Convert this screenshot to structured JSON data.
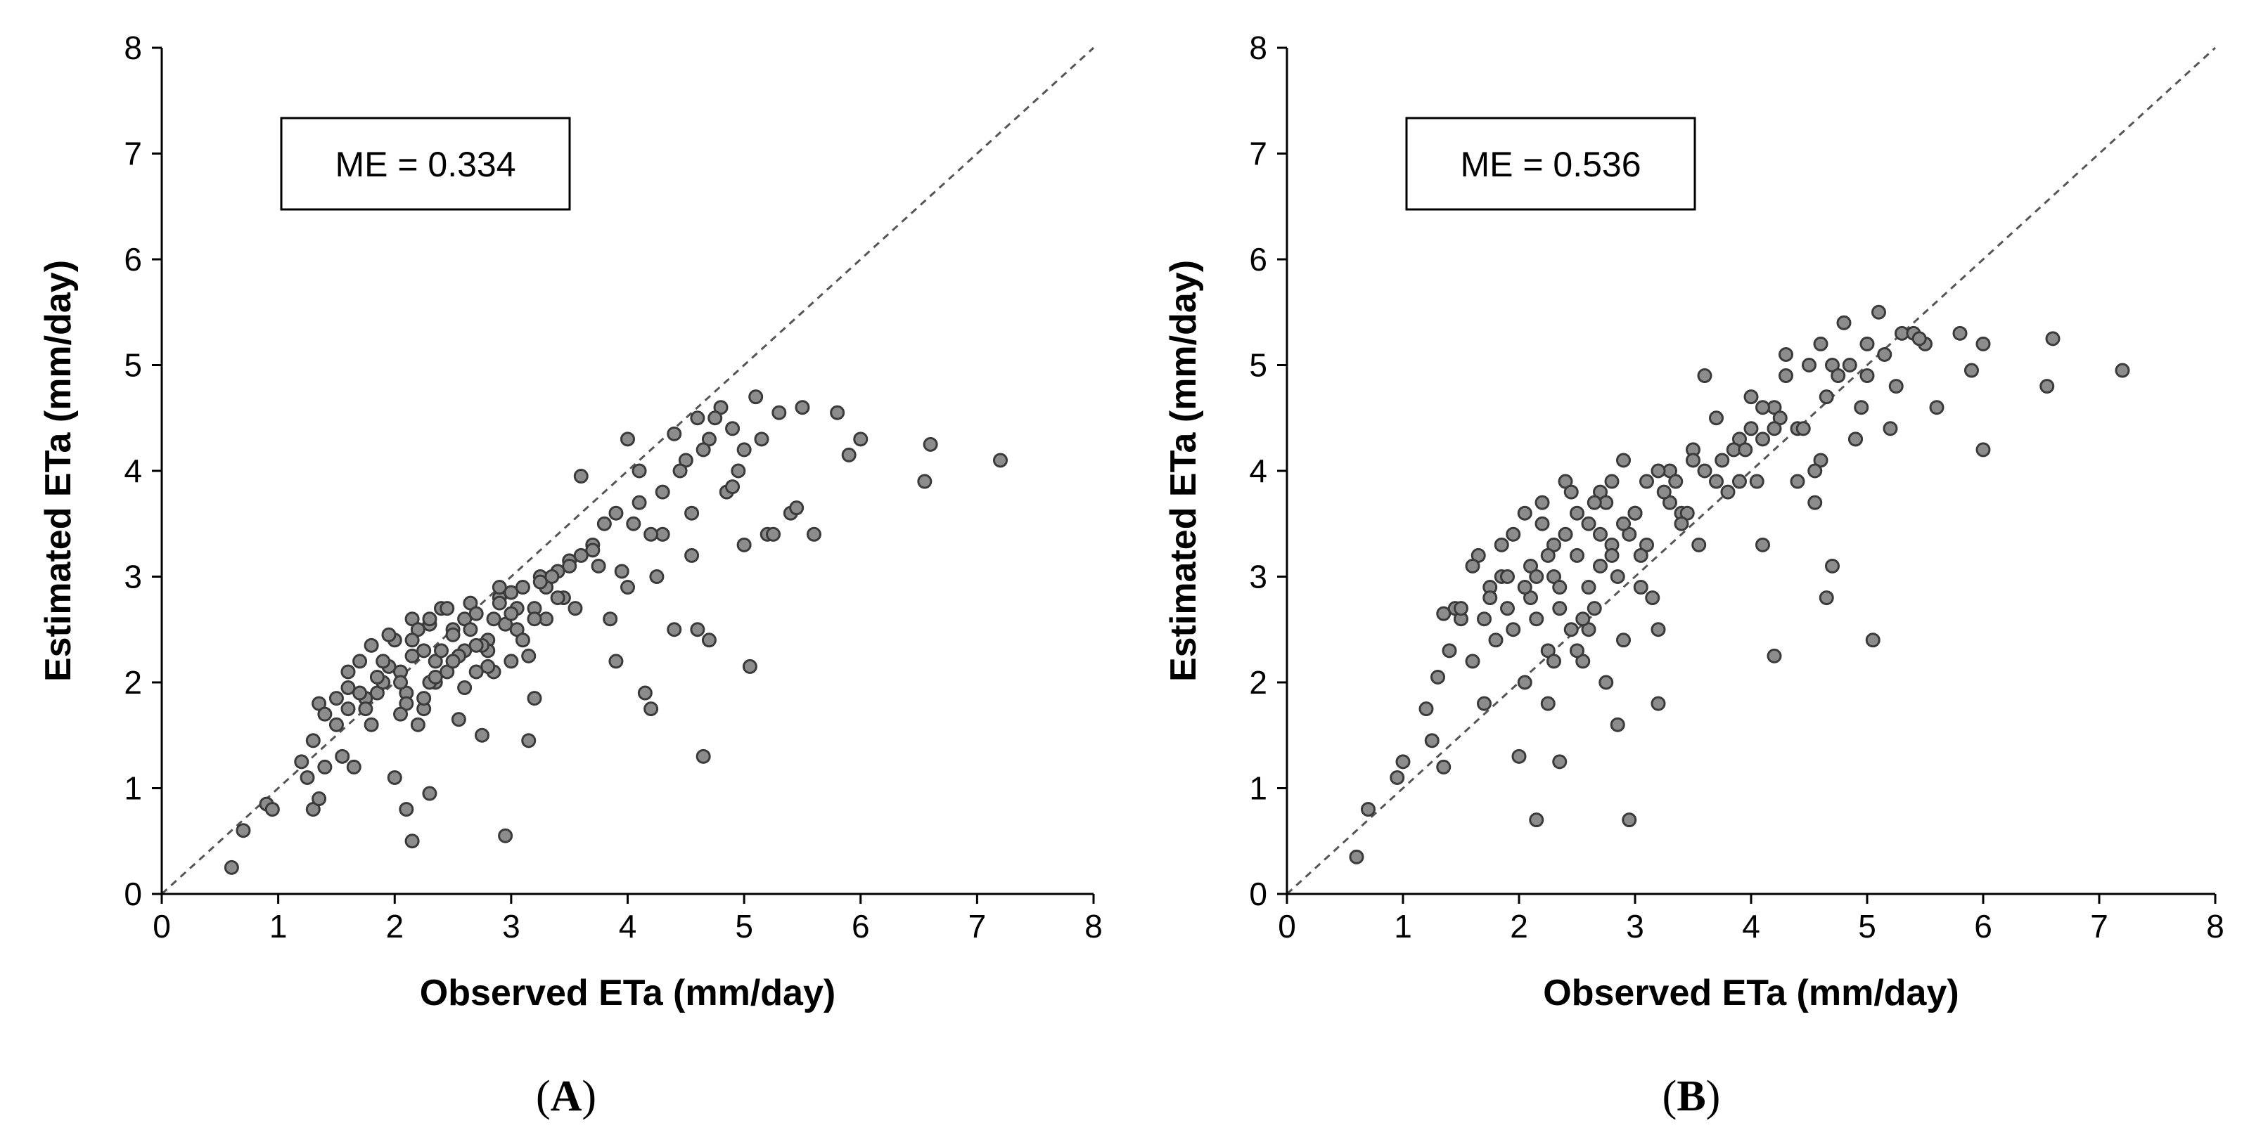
{
  "chart_data": [
    {
      "type": "scatter",
      "panel_label": "A",
      "xlabel": "Observed  ETa (mm/day)",
      "ylabel": "Estimated ETa (mm/day)",
      "xlim": [
        0,
        8
      ],
      "ylim": [
        0,
        8
      ],
      "xticks": [
        "0",
        "1",
        "2",
        "3",
        "4",
        "5",
        "6",
        "7",
        "8"
      ],
      "yticks": [
        "0",
        "1",
        "2",
        "3",
        "4",
        "5",
        "6",
        "7",
        "8"
      ],
      "annotation": "ME = 0.334",
      "reference_line": "1:1",
      "grid": false,
      "point_color": "#8c8c8c",
      "x": [
        0.6,
        0.7,
        0.9,
        0.95,
        1.2,
        1.25,
        1.3,
        1.3,
        1.35,
        1.35,
        1.4,
        1.4,
        1.5,
        1.55,
        1.6,
        1.6,
        1.65,
        1.7,
        1.75,
        1.8,
        1.8,
        1.85,
        1.9,
        1.95,
        2.0,
        2.0,
        2.05,
        2.1,
        2.1,
        2.15,
        2.15,
        2.2,
        2.25,
        2.3,
        2.3,
        2.35,
        2.4,
        2.45,
        2.5,
        2.55,
        2.6,
        2.65,
        2.7,
        2.75,
        2.8,
        2.85,
        2.9,
        2.95,
        3.0,
        3.05,
        3.1,
        3.15,
        3.2,
        3.25,
        3.3,
        3.4,
        3.5,
        3.6,
        3.7,
        3.8,
        3.9,
        4.0,
        4.1,
        4.15,
        4.2,
        4.3,
        4.4,
        4.5,
        4.6,
        4.65,
        4.7,
        4.8,
        4.9,
        5.0,
        5.05,
        5.1,
        5.2,
        5.3,
        5.5,
        5.6,
        5.8,
        6.0,
        6.55,
        6.6,
        7.2,
        2.05,
        2.1,
        2.15,
        2.25,
        2.3,
        2.35,
        2.5,
        2.6,
        2.7,
        2.8,
        2.85,
        2.9,
        3.0,
        3.1,
        3.2,
        3.3,
        3.5,
        3.7,
        4.0,
        4.3,
        4.6,
        4.7,
        1.7,
        1.9,
        2.2,
        2.4,
        2.6,
        2.75,
        2.95,
        3.05,
        3.15,
        3.35,
        3.45,
        3.55,
        3.85,
        4.05,
        4.25,
        4.45,
        4.55,
        4.65,
        4.75,
        4.85,
        4.95,
        5.15,
        5.25,
        5.4,
        2.15,
        2.3,
        2.45,
        2.55,
        2.65,
        2.9,
        3.2,
        3.6,
        3.9,
        4.1,
        1.5,
        1.6,
        1.75,
        1.85,
        1.95,
        2.05,
        2.25,
        2.35,
        2.5,
        2.7,
        2.8,
        3.0,
        3.25,
        3.4,
        3.75,
        3.95,
        4.2,
        4.4,
        4.55,
        4.9,
        5.0,
        5.45,
        5.9
      ],
      "y": [
        0.25,
        0.6,
        0.85,
        0.8,
        1.25,
        1.1,
        0.8,
        1.45,
        0.9,
        1.8,
        1.2,
        1.7,
        1.85,
        1.3,
        2.1,
        1.75,
        1.2,
        2.2,
        1.85,
        1.6,
        2.35,
        1.9,
        2.0,
        2.15,
        1.1,
        2.4,
        2.1,
        0.8,
        1.9,
        2.6,
        0.5,
        1.6,
        2.3,
        0.95,
        2.55,
        2.0,
        2.7,
        2.1,
        2.5,
        1.65,
        2.3,
        2.75,
        2.1,
        1.5,
        2.4,
        2.6,
        2.8,
        0.55,
        2.2,
        2.5,
        2.9,
        1.45,
        2.7,
        3.0,
        2.6,
        3.05,
        3.15,
        3.2,
        3.3,
        3.5,
        3.6,
        4.3,
        3.7,
        1.9,
        1.75,
        3.4,
        4.35,
        4.1,
        4.5,
        1.3,
        2.4,
        4.6,
        4.4,
        3.3,
        2.15,
        4.7,
        3.4,
        4.55,
        4.6,
        3.4,
        4.55,
        4.3,
        3.9,
        4.25,
        4.1,
        2.0,
        1.8,
        2.25,
        1.75,
        2.6,
        2.2,
        2.45,
        1.95,
        2.65,
        2.3,
        2.1,
        2.75,
        2.85,
        2.4,
        2.6,
        2.9,
        3.1,
        3.25,
        2.9,
        3.8,
        2.5,
        4.3,
        1.9,
        2.2,
        2.5,
        2.3,
        2.6,
        2.35,
        2.55,
        2.7,
        2.25,
        3.0,
        2.8,
        2.7,
        2.6,
        3.5,
        3.0,
        4.0,
        3.6,
        4.2,
        4.5,
        3.8,
        4.0,
        4.3,
        3.4,
        3.6,
        2.4,
        2.0,
        2.7,
        2.25,
        2.5,
        2.9,
        1.85,
        3.95,
        2.2,
        4.0,
        1.6,
        1.95,
        1.75,
        2.05,
        2.45,
        1.7,
        1.85,
        2.05,
        2.2,
        2.35,
        2.15,
        2.65,
        2.95,
        2.8,
        3.1,
        3.05,
        3.4,
        2.5,
        3.2,
        3.85,
        4.2,
        3.65,
        4.15
      ]
    },
    {
      "type": "scatter",
      "panel_label": "B",
      "xlabel": "Observed  ETa (mm/day)",
      "ylabel": "Estimated ETa (mm/day)",
      "xlim": [
        0,
        8
      ],
      "ylim": [
        0,
        8
      ],
      "xticks": [
        "0",
        "1",
        "2",
        "3",
        "4",
        "5",
        "6",
        "7",
        "8"
      ],
      "yticks": [
        "0",
        "1",
        "2",
        "3",
        "4",
        "5",
        "6",
        "7",
        "8"
      ],
      "annotation": "ME = 0.536",
      "reference_line": "1:1",
      "grid": false,
      "point_color": "#8c8c8c",
      "x": [
        0.6,
        0.7,
        0.95,
        1.0,
        1.2,
        1.25,
        1.3,
        1.35,
        1.35,
        1.4,
        1.45,
        1.5,
        1.6,
        1.65,
        1.7,
        1.75,
        1.8,
        1.85,
        1.9,
        1.95,
        2.0,
        2.05,
        2.1,
        2.15,
        2.2,
        2.25,
        2.3,
        2.35,
        2.4,
        2.45,
        2.5,
        2.55,
        2.6,
        2.65,
        2.7,
        2.75,
        2.8,
        2.85,
        2.9,
        2.95,
        3.0,
        3.05,
        3.1,
        3.2,
        3.3,
        3.4,
        3.5,
        3.6,
        3.7,
        3.8,
        3.9,
        4.0,
        4.1,
        4.2,
        4.3,
        4.4,
        4.5,
        4.6,
        4.65,
        4.7,
        4.8,
        4.9,
        5.0,
        5.05,
        5.1,
        5.2,
        5.3,
        5.5,
        5.6,
        5.8,
        6.0,
        6.55,
        6.6,
        7.2,
        2.05,
        2.1,
        2.15,
        2.25,
        2.3,
        2.35,
        2.5,
        2.6,
        2.7,
        2.8,
        2.85,
        2.9,
        3.0,
        3.1,
        3.2,
        3.3,
        3.5,
        3.7,
        4.0,
        4.3,
        4.6,
        4.7,
        1.7,
        1.9,
        2.2,
        2.4,
        2.6,
        2.75,
        2.95,
        3.05,
        3.15,
        3.35,
        3.45,
        3.55,
        3.85,
        4.05,
        4.25,
        4.45,
        4.55,
        4.65,
        4.75,
        4.85,
        4.95,
        5.15,
        5.25,
        5.4,
        2.15,
        2.3,
        2.45,
        2.55,
        2.65,
        2.9,
        3.2,
        3.6,
        3.9,
        4.1,
        1.5,
        1.6,
        1.75,
        1.85,
        1.95,
        2.05,
        2.25,
        2.35,
        2.5,
        2.7,
        2.8,
        3.0,
        3.25,
        3.4,
        3.75,
        3.95,
        4.2,
        4.4,
        4.55,
        4.9,
        5.0,
        5.45,
        5.9,
        6.0,
        4.2,
        4.1
      ],
      "y": [
        0.35,
        0.8,
        1.1,
        1.25,
        1.75,
        1.45,
        2.05,
        1.2,
        2.65,
        2.3,
        2.7,
        2.6,
        2.2,
        3.2,
        1.8,
        2.9,
        2.4,
        3.0,
        2.7,
        3.4,
        1.3,
        3.6,
        2.8,
        0.7,
        3.7,
        1.8,
        3.0,
        1.25,
        3.9,
        2.5,
        3.2,
        2.2,
        3.5,
        2.7,
        3.8,
        2.0,
        3.3,
        1.6,
        4.1,
        0.7,
        3.6,
        2.9,
        3.9,
        1.8,
        4.0,
        3.6,
        4.2,
        4.9,
        4.5,
        3.8,
        4.3,
        4.7,
        3.3,
        4.6,
        5.1,
        4.4,
        5.0,
        5.2,
        4.7,
        3.1,
        5.4,
        4.3,
        5.2,
        2.4,
        5.5,
        4.4,
        5.3,
        5.2,
        4.6,
        5.3,
        4.2,
        4.8,
        5.25,
        4.95,
        2.0,
        3.1,
        2.6,
        2.3,
        3.3,
        2.7,
        3.6,
        2.5,
        3.1,
        3.9,
        3.0,
        2.4,
        3.6,
        3.3,
        4.0,
        3.7,
        4.1,
        3.9,
        4.4,
        4.9,
        4.1,
        5.0,
        2.6,
        3.0,
        3.5,
        3.4,
        2.9,
        3.7,
        3.4,
        3.2,
        2.8,
        3.9,
        3.6,
        3.3,
        4.2,
        3.9,
        4.5,
        4.4,
        3.7,
        2.8,
        4.9,
        5.0,
        4.6,
        5.1,
        4.8,
        5.3,
        3.0,
        2.2,
        3.8,
        2.6,
        3.7,
        3.5,
        2.5,
        4.0,
        3.9,
        4.6,
        2.7,
        3.1,
        2.8,
        3.3,
        2.5,
        2.9,
        3.2,
        2.9,
        2.3,
        3.4,
        3.2,
        3.6,
        3.8,
        3.5,
        4.1,
        4.2,
        4.4,
        3.9,
        4.0,
        4.3,
        4.9,
        5.25,
        4.95,
        5.2,
        2.25,
        4.3
      ]
    }
  ]
}
